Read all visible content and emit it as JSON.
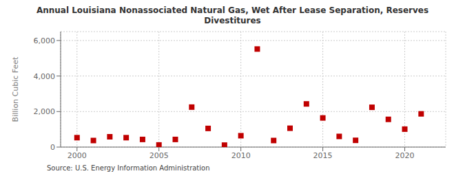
{
  "chart_data": {
    "type": "scatter",
    "title": "Annual Louisiana Nonassociated Natural Gas, Wet After Lease Separation, Reserves\nDivestitures",
    "ylabel": "Billion Cubic Feet",
    "annotations": [
      "Source: U.S. Energy Information Administration"
    ],
    "x": [
      2000,
      2001,
      2002,
      2003,
      2004,
      2005,
      2006,
      2007,
      2008,
      2009,
      2010,
      2011,
      2012,
      2013,
      2014,
      2015,
      2016,
      2017,
      2018,
      2019,
      2020,
      2021
    ],
    "values": [
      530,
      370,
      580,
      530,
      430,
      120,
      430,
      2250,
      1050,
      110,
      640,
      5520,
      370,
      1060,
      2430,
      1640,
      600,
      380,
      2240,
      1560,
      1010,
      1870
    ],
    "color": "#c00000",
    "marker": "square",
    "xlim": [
      1999,
      2022.5
    ],
    "ylim": [
      0,
      6500
    ],
    "xticks": [
      2000,
      2005,
      2010,
      2015,
      2020
    ],
    "yticks": [
      0,
      {
        "value": 2000,
        "label": "2,000"
      },
      {
        "value": 4000,
        "label": "4,000"
      },
      {
        "value": 6000,
        "label": "6,000"
      }
    ],
    "grid": true
  }
}
